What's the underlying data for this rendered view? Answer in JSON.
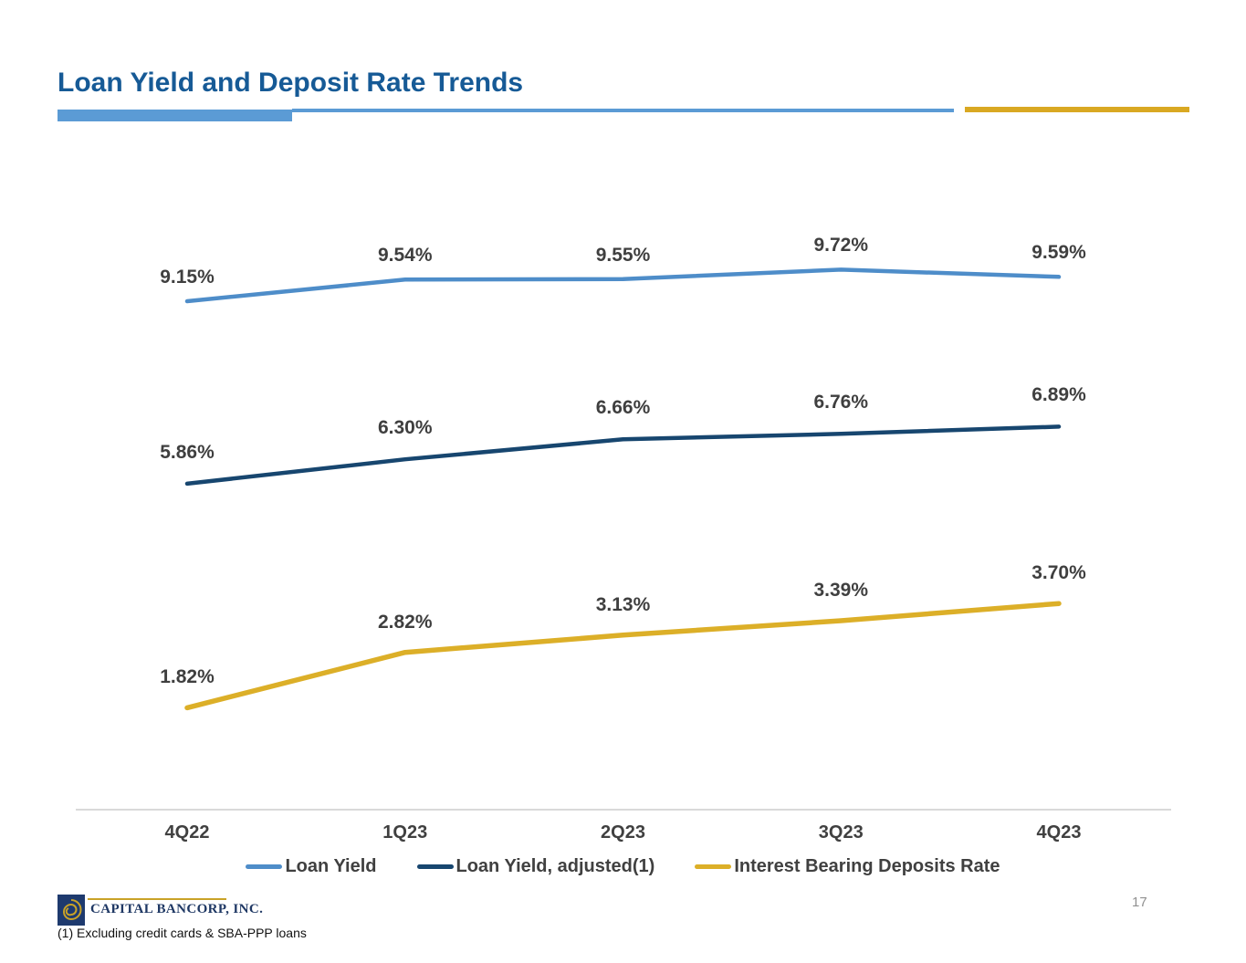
{
  "slide": {
    "title": "Loan Yield and Deposit Rate Trends",
    "title_color": "#165A96",
    "accent_blue": "#5B9BD5",
    "accent_gold": "#D9A822",
    "page_number": "17",
    "footnote": "(1) Excluding credit cards & SBA-PPP loans",
    "logo_text": "CAPITAL BANCORP, INC.",
    "logo_text_color": "#1F3864",
    "logo_box_color": "#1E3A6E",
    "logo_gold": "#C9A227"
  },
  "chart_data": {
    "type": "line",
    "title": "",
    "xlabel": "",
    "ylabel": "",
    "categories": [
      "4Q22",
      "1Q23",
      "2Q23",
      "3Q23",
      "4Q23"
    ],
    "series": [
      {
        "name": "Loan Yield",
        "color": "#4E8DC9",
        "values": [
          9.15,
          9.54,
          9.55,
          9.72,
          9.59
        ],
        "labels": [
          "9.15%",
          "9.54%",
          "9.55%",
          "9.72%",
          "9.59%"
        ]
      },
      {
        "name": "Loan Yield, adjusted(1)",
        "color": "#17466F",
        "values": [
          5.86,
          6.3,
          6.66,
          6.76,
          6.89
        ],
        "labels": [
          "5.86%",
          "6.30%",
          "6.66%",
          "6.76%",
          "6.89%"
        ]
      },
      {
        "name": "Interest Bearing Deposits Rate",
        "color": "#DCAF28",
        "values": [
          1.82,
          2.82,
          3.13,
          3.39,
          3.7
        ],
        "labels": [
          "1.82%",
          "2.82%",
          "3.13%",
          "3.39%",
          "3.70%"
        ]
      }
    ],
    "ylim": [
      0,
      12
    ],
    "grid": false,
    "legend_position": "bottom",
    "label_color": "#3F3F3F",
    "axis_text_color": "#404040",
    "axis_line_color": "#D9D9D9"
  }
}
